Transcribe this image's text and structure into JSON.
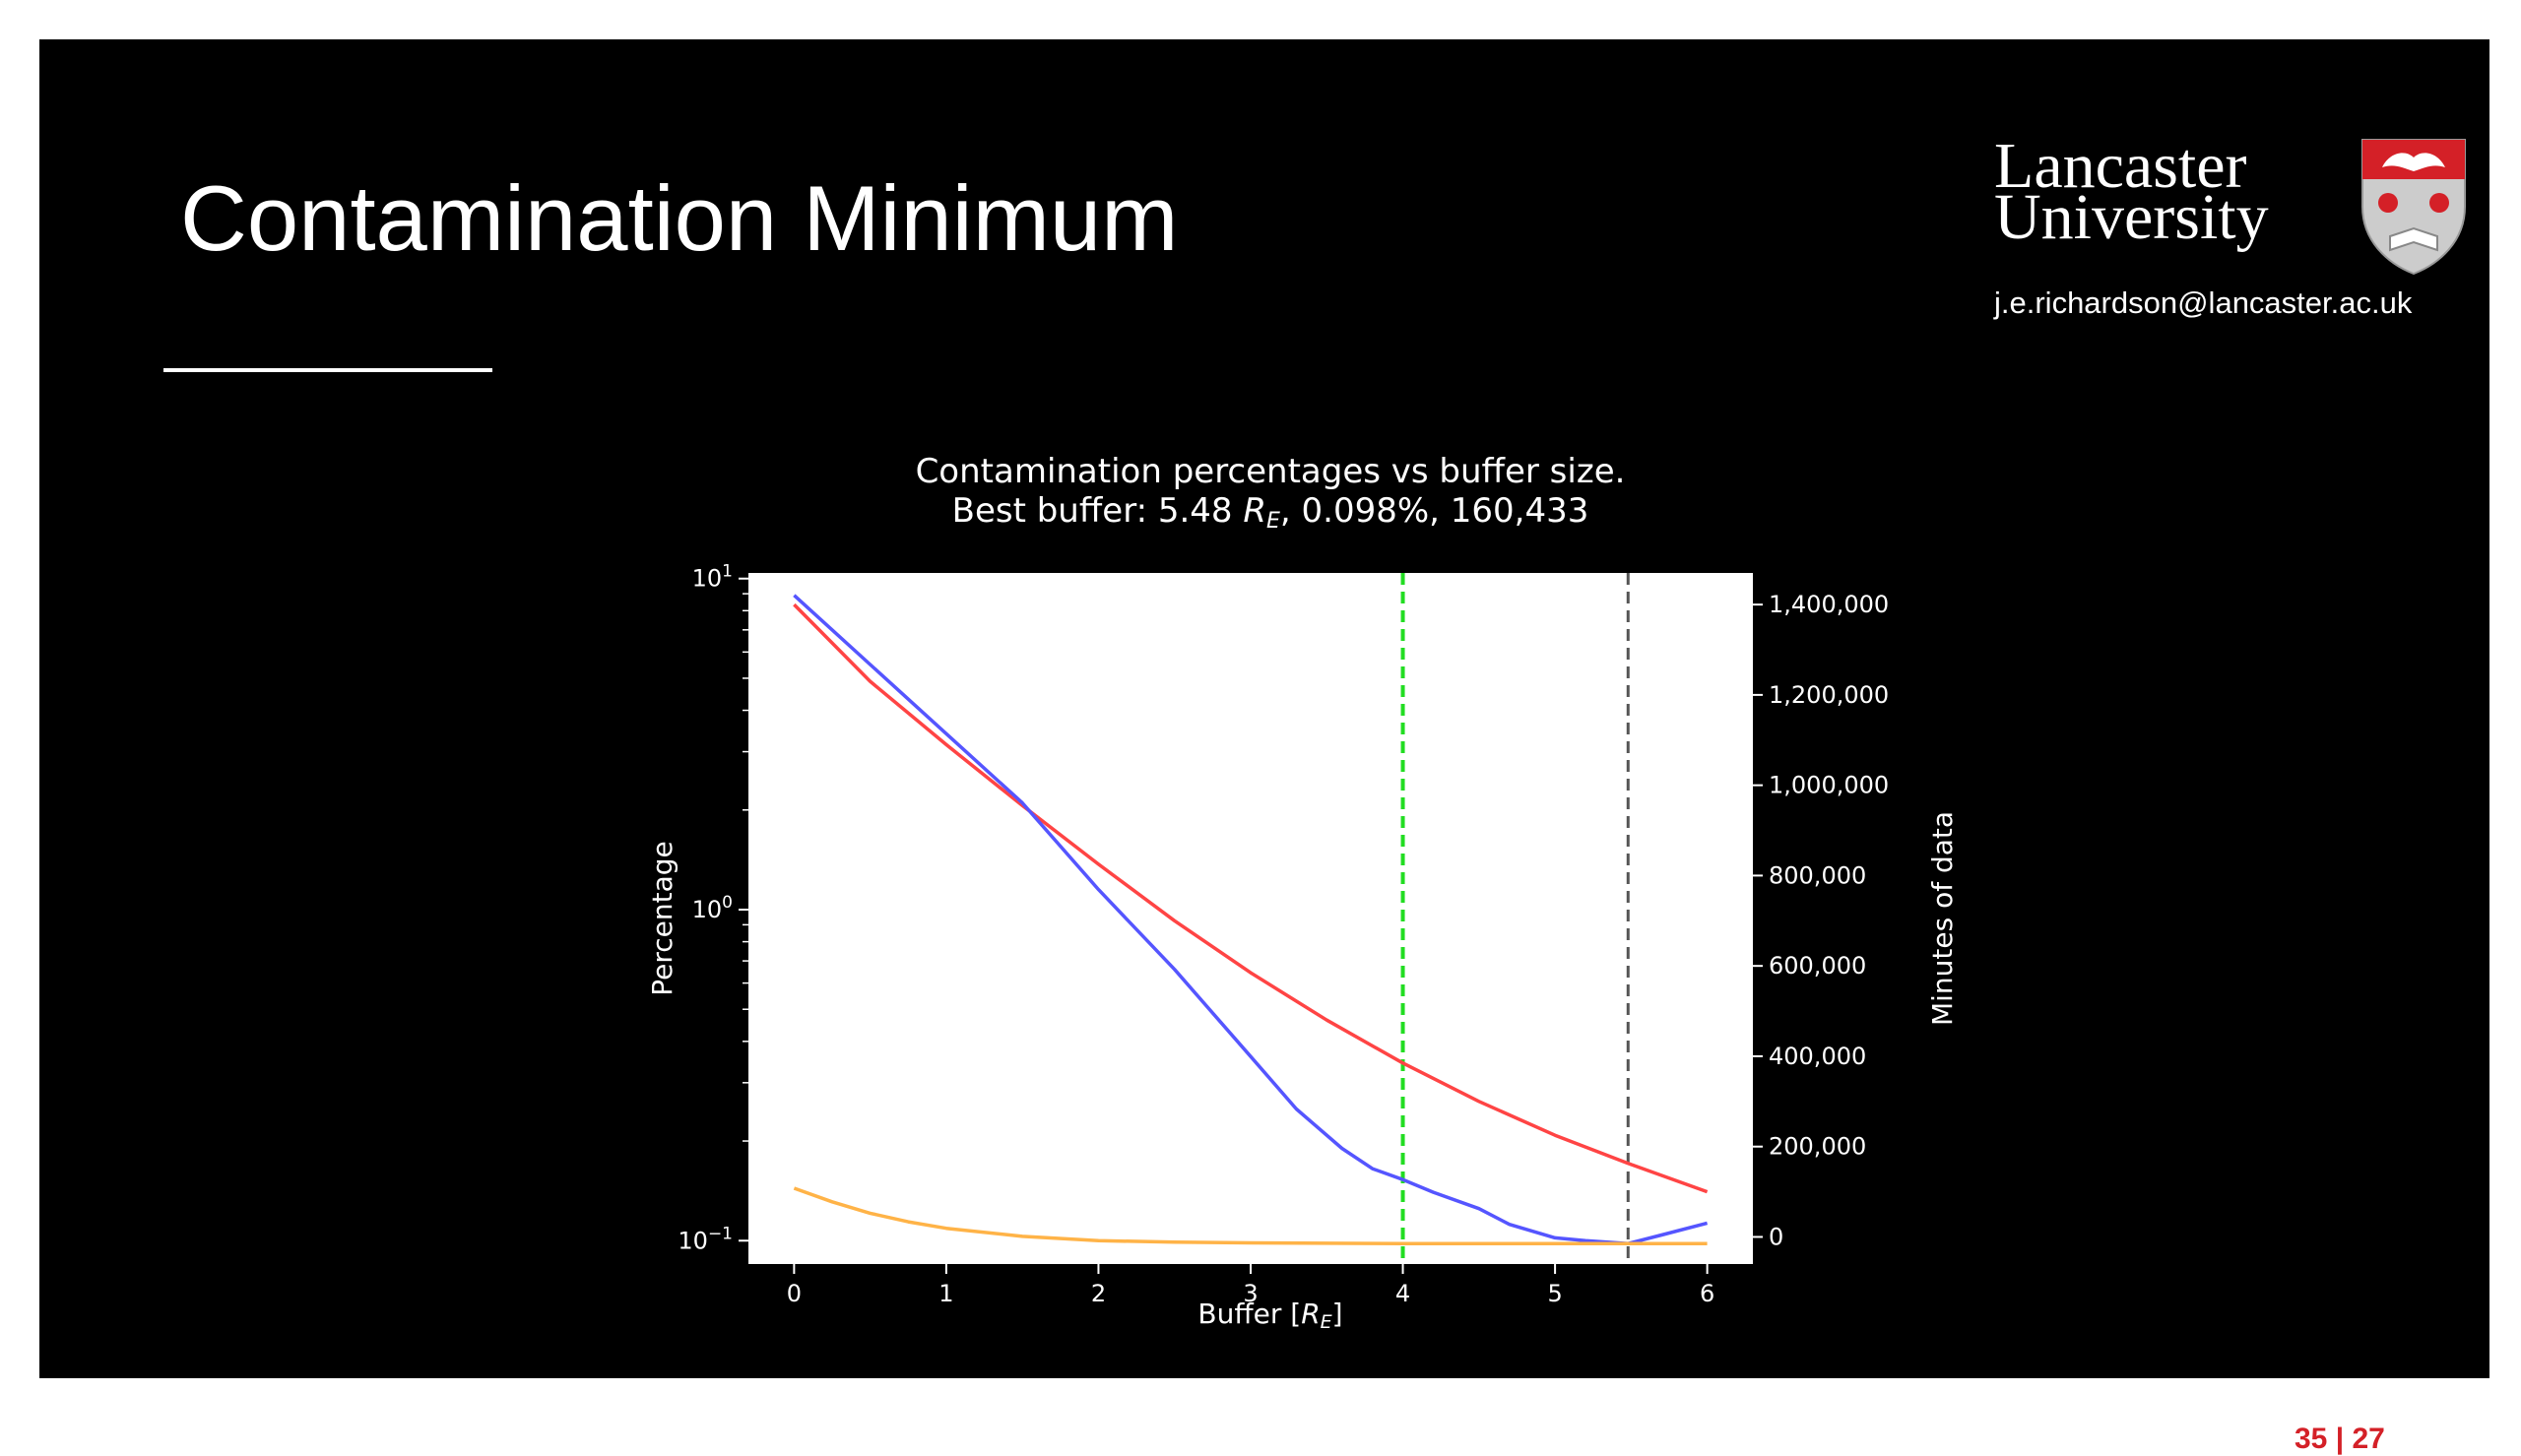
{
  "slide": {
    "title": "Contamination Minimum",
    "logo_line1": "Lancaster",
    "logo_line2": "University",
    "email": "j.e.richardson@lancaster.ac.uk",
    "page_current": "35",
    "page_separator": "|",
    "page_total": "27",
    "page_color": "#d42027"
  },
  "chart_data": {
    "type": "line",
    "title_line1": "Contamination percentages vs buffer size.",
    "title_line2": "Best buffer: 5.48 R_E, 0.098%, 160,433",
    "xlabel": "Buffer [R_E]",
    "ylabel_left": "Percentage",
    "ylabel_right": "Minutes of data",
    "xlim": [
      -0.3,
      6.3
    ],
    "ylim_left": [
      0.085,
      10.4
    ],
    "yscale_left": "log",
    "ylim_right": [
      -60000,
      1470000
    ],
    "xticks": [
      "0",
      "1",
      "2",
      "3",
      "4",
      "5",
      "6"
    ],
    "yticks_left": [
      "10^1",
      "10^0",
      "10^-1"
    ],
    "yticks_right": [
      "0",
      "200,000",
      "400,000",
      "600,000",
      "800,000",
      "1,000,000",
      "1,200,000",
      "1,400,000"
    ],
    "vlines": [
      {
        "x": 4.0,
        "color": "#22dd22",
        "style": "dashed"
      },
      {
        "x": 5.48,
        "color": "#555555",
        "style": "dashed"
      }
    ],
    "series": [
      {
        "color": "#ff4444",
        "axis": "right",
        "x": [
          0,
          0.5,
          1,
          1.5,
          2,
          2.5,
          3,
          3.5,
          4,
          4.5,
          5,
          5.5,
          6
        ],
        "values": [
          1400000,
          1230000,
          1090000,
          955000,
          825000,
          700000,
          585000,
          480000,
          385000,
          300000,
          225000,
          160433,
          100000
        ]
      },
      {
        "color": "#5555ff",
        "axis": "left",
        "x": [
          0,
          0.5,
          1,
          1.5,
          2,
          2.5,
          3,
          3.3,
          3.6,
          3.8,
          4,
          4.2,
          4.5,
          4.7,
          5,
          5.2,
          5.48,
          5.7,
          6
        ],
        "values": [
          8.9,
          5.5,
          3.4,
          2.1,
          1.15,
          0.66,
          0.36,
          0.25,
          0.19,
          0.165,
          0.153,
          0.14,
          0.125,
          0.112,
          0.102,
          0.1,
          0.098,
          0.104,
          0.113
        ]
      },
      {
        "color": "#ffb347",
        "axis": "left",
        "x": [
          0,
          0.25,
          0.5,
          0.75,
          1,
          1.5,
          2,
          2.5,
          3,
          4,
          5,
          6
        ],
        "values": [
          0.144,
          0.131,
          0.121,
          0.114,
          0.109,
          0.103,
          0.1,
          0.099,
          0.0985,
          0.098,
          0.098,
          0.098
        ]
      }
    ]
  }
}
